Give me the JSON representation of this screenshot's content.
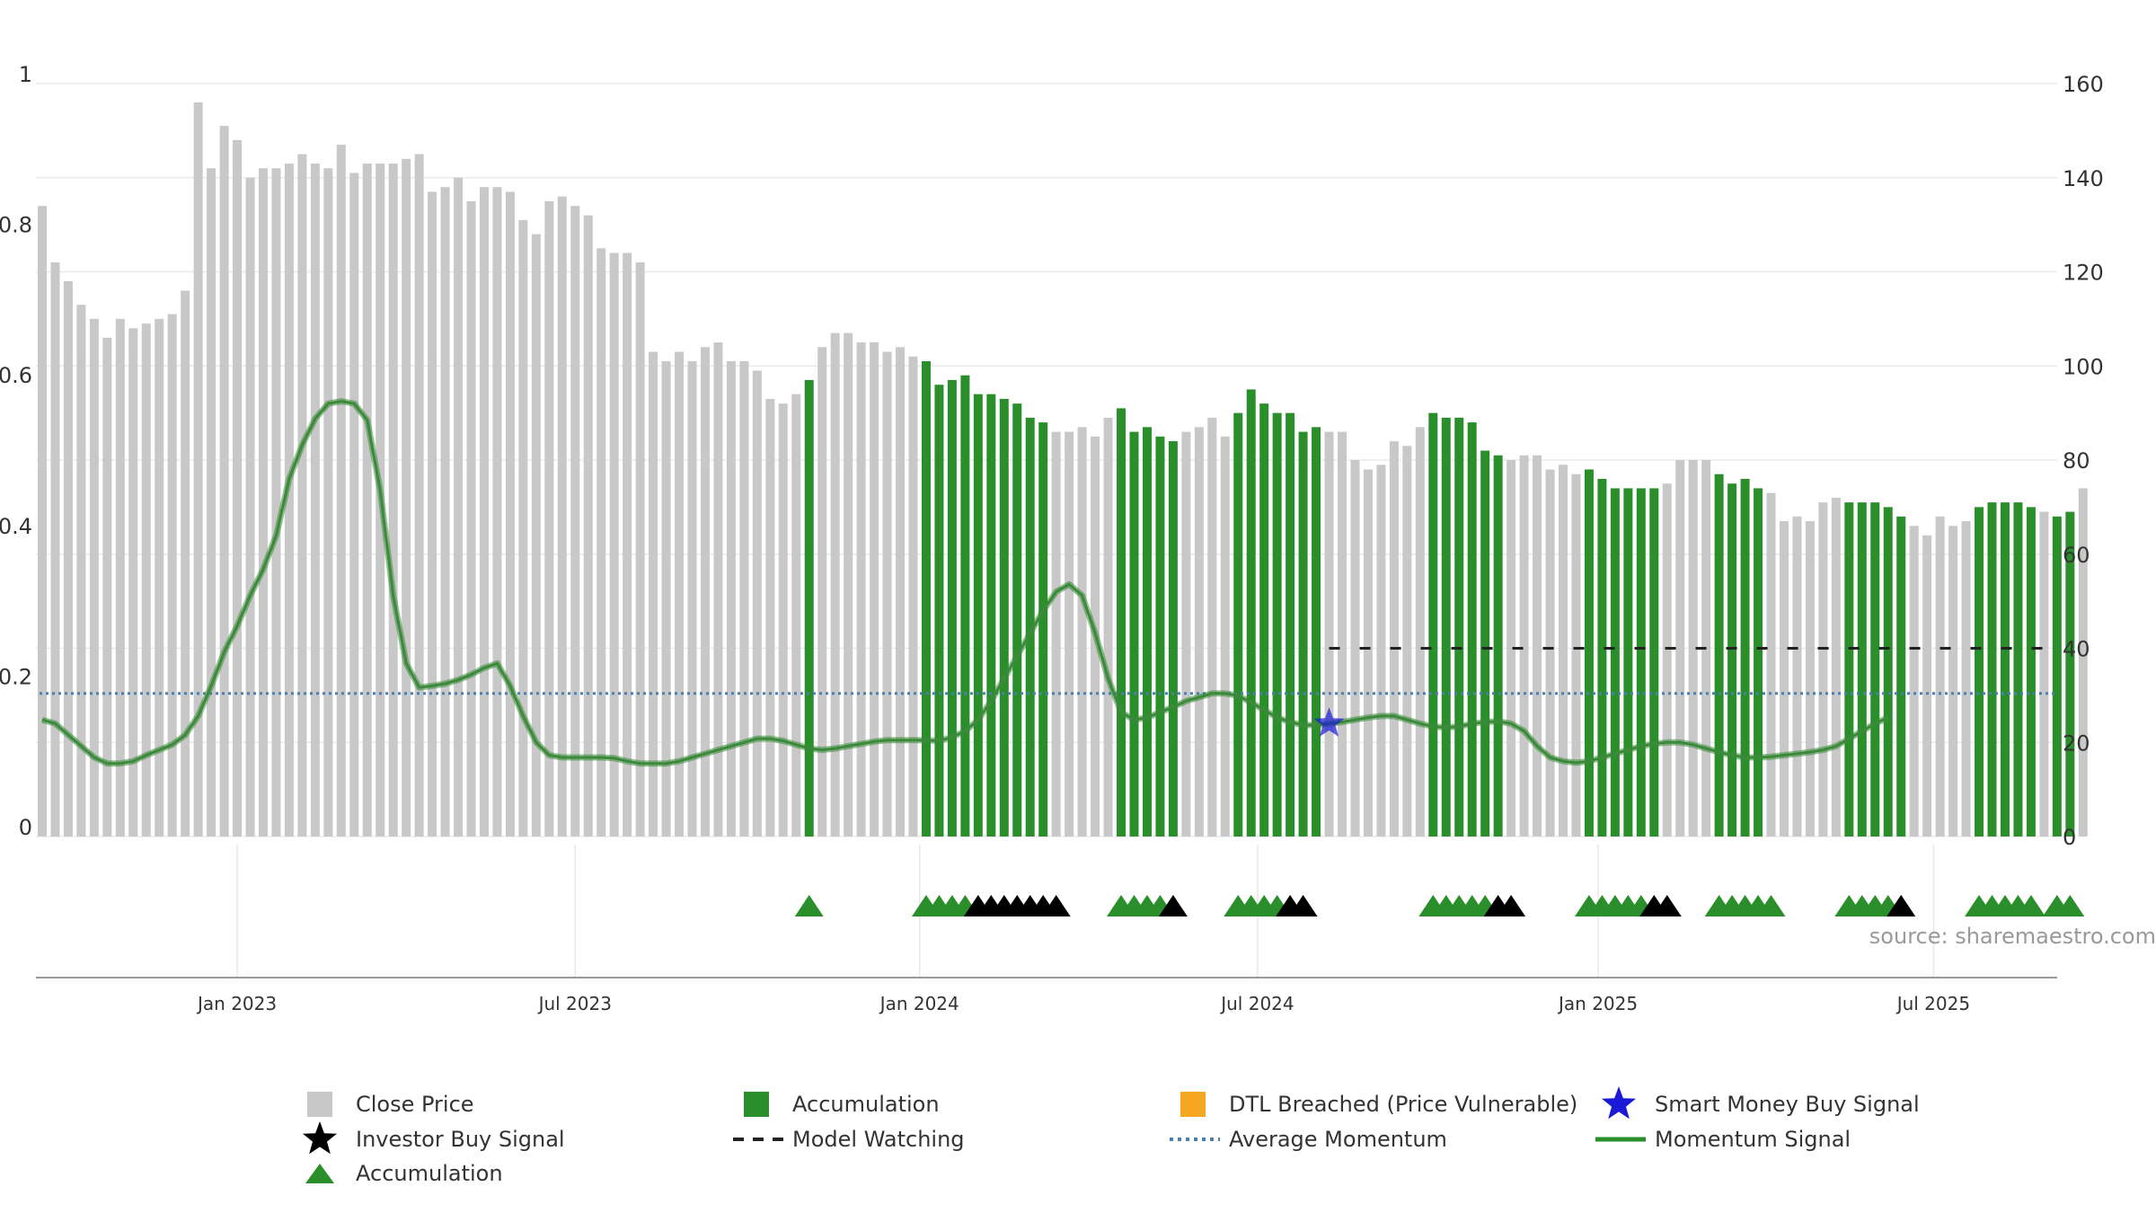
{
  "chart_data": {
    "type": "bar",
    "source": "source: sharemaestro.com",
    "axes": {
      "left": {
        "ticks": [
          "0",
          "0.2",
          "0.4",
          "0.6",
          "0.8",
          "1"
        ],
        "range": [
          0,
          1
        ]
      },
      "right": {
        "ticks": [
          "0",
          "20",
          "40",
          "60",
          "80",
          "100",
          "120",
          "140",
          "160"
        ],
        "range": [
          0,
          160
        ]
      },
      "x_ticks": [
        {
          "label": "Jan 2023",
          "bar_index": 15
        },
        {
          "label": "Jul 2023",
          "bar_index": 41
        },
        {
          "label": "Jan 2024",
          "bar_index": 67.5
        },
        {
          "label": "Jul 2024",
          "bar_index": 93.5
        },
        {
          "label": "Jan 2025",
          "bar_index": 119.7
        },
        {
          "label": "Jul 2025",
          "bar_index": 145.5
        }
      ],
      "grid": true
    },
    "colors": {
      "close_price": "#c8c8c8",
      "accumulation": "#2a8f2a",
      "momentum": "#3a8a3a",
      "average_momentum": "#4a7fb0",
      "model_watching": "#222222",
      "smart_money": "#1a1ad6",
      "investor_buy": "#000000",
      "dtl_breached": "#f5a623"
    },
    "close_price": [
      134,
      122,
      118,
      113,
      110,
      106,
      110,
      108,
      109,
      110,
      111,
      116,
      156,
      142,
      151,
      148,
      140,
      142,
      142,
      143,
      145,
      143,
      142,
      147,
      141,
      143,
      143,
      143,
      144,
      145,
      137,
      138,
      140,
      135,
      138,
      138,
      137,
      131,
      128,
      135,
      136,
      134,
      132,
      125,
      124,
      124,
      122,
      103,
      101,
      103,
      101,
      104,
      105,
      101,
      101,
      99,
      93,
      92,
      94,
      97,
      104,
      107,
      107,
      105,
      105,
      103,
      104,
      102,
      101,
      96,
      97,
      98,
      94,
      94,
      93,
      92,
      89,
      88,
      86,
      86,
      87,
      85,
      89,
      91,
      86,
      87,
      85,
      84,
      86,
      87,
      89,
      85,
      90,
      95,
      92,
      90,
      90,
      86,
      87,
      86,
      86,
      80,
      78,
      79,
      84,
      83,
      87,
      90,
      89,
      89,
      88,
      82,
      81,
      80,
      81,
      81,
      78,
      79,
      77,
      78,
      76,
      74,
      74,
      74,
      74,
      75,
      80,
      80,
      80,
      77,
      75,
      76,
      74,
      73,
      67,
      68,
      67,
      71,
      72,
      71,
      71,
      71,
      70,
      68,
      66,
      64,
      68,
      66,
      67,
      70,
      71,
      71,
      71,
      70,
      69,
      68,
      69,
      74
    ],
    "accumulation_indices": [
      59,
      68,
      69,
      70,
      71,
      72,
      73,
      74,
      75,
      76,
      77,
      83,
      84,
      85,
      86,
      87,
      92,
      93,
      94,
      95,
      96,
      97,
      98,
      107,
      108,
      109,
      110,
      111,
      112,
      119,
      120,
      121,
      122,
      123,
      124,
      129,
      130,
      131,
      132,
      139,
      140,
      141,
      142,
      143,
      149,
      150,
      151,
      152,
      153,
      155,
      156
    ],
    "momentum_signal": [
      0.155,
      0.15,
      0.135,
      0.12,
      0.105,
      0.097,
      0.097,
      0.1,
      0.108,
      0.115,
      0.122,
      0.135,
      0.16,
      0.2,
      0.245,
      0.28,
      0.32,
      0.355,
      0.4,
      0.475,
      0.52,
      0.555,
      0.575,
      0.578,
      0.575,
      0.553,
      0.46,
      0.32,
      0.23,
      0.198,
      0.2,
      0.203,
      0.208,
      0.215,
      0.224,
      0.23,
      0.2,
      0.16,
      0.125,
      0.108,
      0.105,
      0.105,
      0.105,
      0.105,
      0.104,
      0.1,
      0.097,
      0.097,
      0.097,
      0.1,
      0.105,
      0.11,
      0.115,
      0.12,
      0.125,
      0.13,
      0.13,
      0.127,
      0.122,
      0.117,
      0.115,
      0.117,
      0.12,
      0.123,
      0.126,
      0.128,
      0.128,
      0.128,
      0.128,
      0.127,
      0.132,
      0.14,
      0.155,
      0.18,
      0.21,
      0.24,
      0.27,
      0.3,
      0.325,
      0.335,
      0.32,
      0.27,
      0.21,
      0.165,
      0.155,
      0.158,
      0.165,
      0.172,
      0.18,
      0.185,
      0.19,
      0.19,
      0.187,
      0.178,
      0.168,
      0.158,
      0.152,
      0.148,
      0.148,
      0.15,
      0.152,
      0.155,
      0.158,
      0.16,
      0.16,
      0.155,
      0.15,
      0.146,
      0.145,
      0.146,
      0.15,
      0.152,
      0.153,
      0.15,
      0.14,
      0.12,
      0.105,
      0.1,
      0.098,
      0.1,
      0.105,
      0.11,
      0.115,
      0.12,
      0.123,
      0.125,
      0.125,
      0.122,
      0.117,
      0.112,
      0.108,
      0.105,
      0.105,
      0.106,
      0.108,
      0.11,
      0.112,
      0.115,
      0.12,
      0.13,
      0.14,
      0.15,
      0.158
    ],
    "average_momentum": 0.19,
    "model_watching_level": 0.25,
    "model_watching_from_index": 99,
    "smart_money_signal_index": 99,
    "accumulation_markers": [
      59,
      68,
      69,
      70,
      71,
      83,
      84,
      85,
      86,
      92,
      93,
      94,
      95,
      107,
      108,
      109,
      110,
      111,
      119,
      120,
      121,
      122,
      123,
      129,
      130,
      131,
      132,
      133,
      139,
      140,
      141,
      142,
      143,
      149,
      150,
      151,
      152,
      153,
      155,
      156
    ],
    "investor_buy_markers": [
      72,
      73,
      74,
      75,
      76,
      77,
      78,
      87,
      96,
      97,
      112,
      113,
      124,
      125,
      143
    ]
  },
  "legend": {
    "items": [
      {
        "label": "Close Price",
        "symbol": "gray-square"
      },
      {
        "label": "Accumulation",
        "symbol": "green-square"
      },
      {
        "label": "DTL Breached (Price Vulnerable)",
        "symbol": "orange-square"
      },
      {
        "label": "Smart Money Buy Signal",
        "symbol": "blue-star"
      },
      {
        "label": "Investor Buy Signal",
        "symbol": "black-star"
      },
      {
        "label": "Model Watching",
        "symbol": "black-dash"
      },
      {
        "label": "Average Momentum",
        "symbol": "blue-dots"
      },
      {
        "label": "Momentum Signal",
        "symbol": "green-line"
      },
      {
        "label": "Accumulation",
        "symbol": "green-triangle"
      }
    ]
  }
}
